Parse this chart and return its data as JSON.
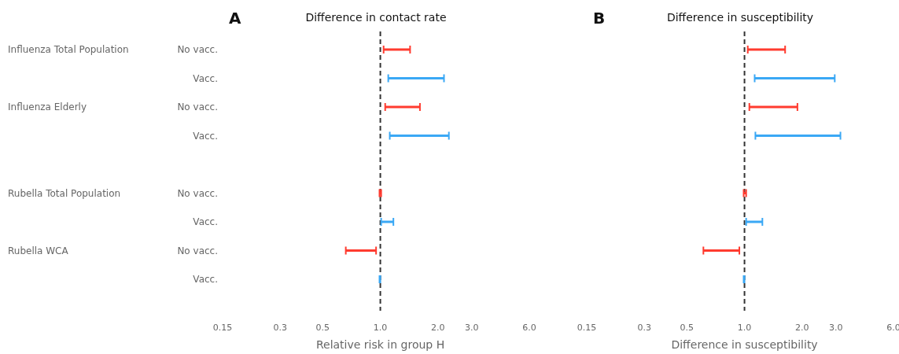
{
  "chart_data": [
    {
      "type": "bar",
      "orientation": "horizontal",
      "log": "x",
      "title": "Difference in contact rate",
      "xlabel": "Relative risk in group H",
      "annotations": [
        "A",
        "Influenza Total Population",
        "Influenza Elderly",
        "Rubella Total Population",
        "Rubella WCA"
      ],
      "categories": [
        "No vacc.",
        "Vacc.",
        "No vacc.",
        "Vacc.",
        null,
        "No vacc.",
        "Vacc.",
        "No vacc.",
        "Vacc."
      ],
      "base": [
        1.04,
        1.1,
        1.06,
        1.12,
        null,
        0.99,
        1.01,
        0.66,
        0.99
      ],
      "values": [
        0.39,
        1.05,
        0.55,
        1.16,
        null,
        0.02,
        0.16,
        0.29,
        0.01
      ],
      "colors": [
        "#ff3b2f",
        "#3aa8f5",
        "#ff3b2f",
        "#3aa8f5",
        null,
        "#ff3b2f",
        "#3aa8f5",
        "#ff3b2f",
        "#3aa8f5"
      ],
      "xlim": [
        0.15,
        6
      ],
      "xticks": [
        0.15,
        0.3,
        0.5,
        {
          "value": 1,
          "label": "1.0"
        },
        {
          "value": 2,
          "label": "2.0"
        },
        {
          "value": 3,
          "label": "3.0"
        },
        {
          "value": 6,
          "label": "6.0"
        }
      ],
      "ref_lines": [
        {
          "axis": "x",
          "value": 1,
          "color": "#333333",
          "line_style": "dashed"
        }
      ],
      "grid": false
    },
    {
      "type": "bar",
      "orientation": "horizontal",
      "log": "x",
      "title": "Difference in susceptibility",
      "xlabel": "Difference in susceptibility",
      "annotations": [
        "B"
      ],
      "tick_labels": "x",
      "categories": [
        null,
        null,
        null,
        null,
        null,
        null,
        null,
        null,
        null
      ],
      "base": [
        1.04,
        1.13,
        1.06,
        1.14,
        null,
        0.99,
        1.02,
        0.61,
        0.99
      ],
      "values": [
        0.59,
        1.83,
        0.83,
        2.03,
        null,
        0.03,
        0.22,
        0.33,
        0.01
      ],
      "colors": [
        "#ff3b2f",
        "#3aa8f5",
        "#ff3b2f",
        "#3aa8f5",
        null,
        "#ff3b2f",
        "#3aa8f5",
        "#ff3b2f",
        "#3aa8f5"
      ],
      "xlim": [
        0.15,
        6
      ],
      "xticks": [
        0.15,
        0.3,
        0.5,
        {
          "value": 1,
          "label": "1.0"
        },
        {
          "value": 2,
          "label": "2.0"
        },
        {
          "value": 3,
          "label": "3.0"
        },
        {
          "value": 6,
          "label": "6.0"
        }
      ],
      "ref_lines": [
        {
          "axis": "x",
          "value": 1,
          "color": "#333333",
          "line_style": "dashed"
        }
      ],
      "grid": false
    }
  ]
}
